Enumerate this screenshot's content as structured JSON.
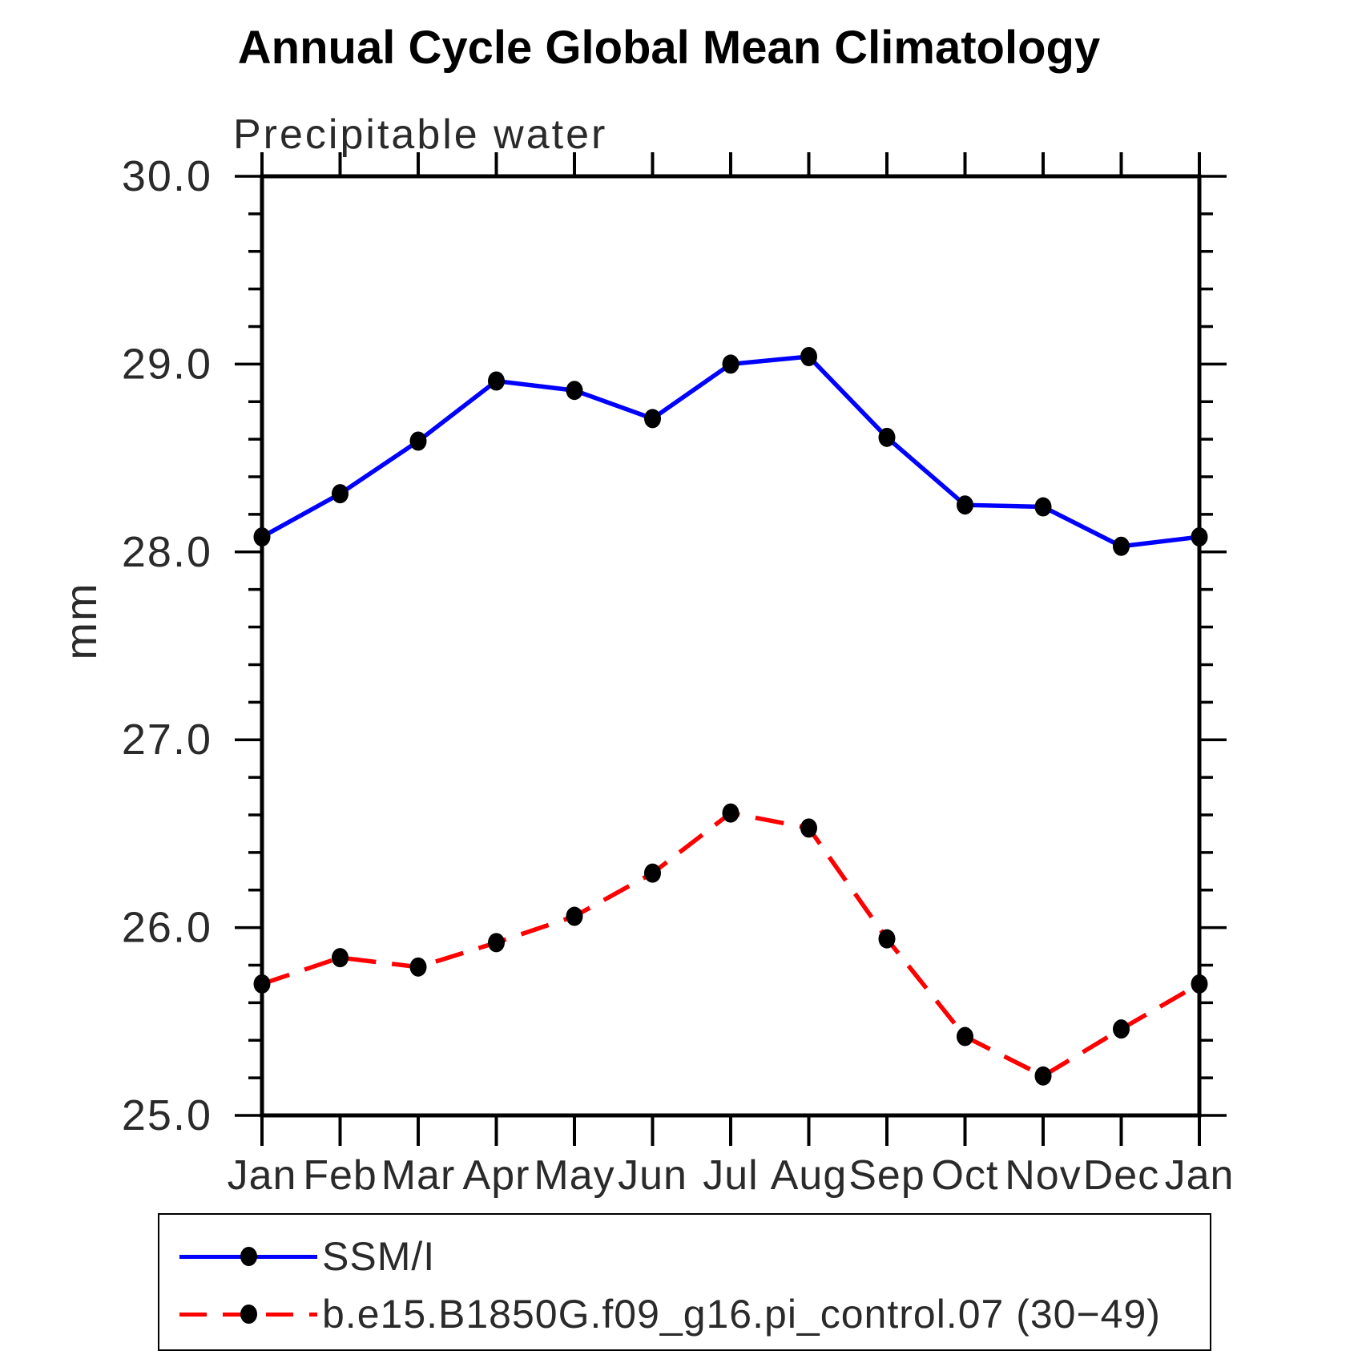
{
  "chart_data": {
    "type": "line",
    "title": "Annual Cycle Global Mean Climatology",
    "subtitle": "Precipitable water",
    "ylabel": "mm",
    "categories": [
      "Jan",
      "Feb",
      "Mar",
      "Apr",
      "May",
      "Jun",
      "Jul",
      "Aug",
      "Sep",
      "Oct",
      "Nov",
      "Dec",
      "Jan"
    ],
    "ylim": [
      25.0,
      30.0
    ],
    "ytick_major": 1.0,
    "ytick_minor": 0.2,
    "ytick_label_format": "one_decimal",
    "grid": false,
    "legend_position": "bottom-left",
    "axis_color": "#000000",
    "marker_color": "#000000",
    "series": [
      {
        "name": "SSM/I",
        "color": "#0000ff",
        "line_style": "solid",
        "values": [
          28.08,
          28.31,
          28.59,
          28.91,
          28.86,
          28.71,
          29.0,
          29.04,
          28.61,
          28.25,
          28.24,
          28.03,
          28.08
        ]
      },
      {
        "name": "b.e15.B1850G.f09_g16.pi_control.07 (30−49)",
        "color": "#ff0000",
        "line_style": "dashed",
        "values": [
          25.7,
          25.84,
          25.79,
          25.92,
          26.06,
          26.29,
          26.61,
          26.53,
          25.94,
          25.42,
          25.21,
          25.46,
          25.7
        ]
      }
    ]
  }
}
